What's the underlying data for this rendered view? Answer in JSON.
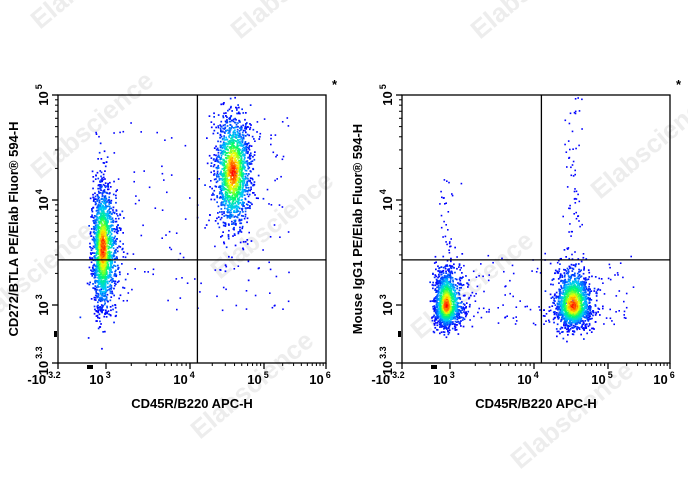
{
  "watermark": "Elabscience",
  "chart_data": [
    {
      "type": "scatter",
      "subtype": "flow-cytometry pseudocolor density plot",
      "xlabel": "CD45R/B220 APC-H",
      "ylabel": "CD272/BTLA PE/Elab Fluor® 594-H",
      "corner_mark": "*",
      "x_scale": "biexponential",
      "y_scale": "biexponential",
      "x_ticks": [
        {
          "base": "-10",
          "exp": "3.2"
        },
        {
          "base": "10",
          "exp": "3"
        },
        {
          "base": "10",
          "exp": "4"
        },
        {
          "base": "10",
          "exp": "5"
        },
        {
          "base": "10",
          "exp": "6"
        }
      ],
      "y_ticks": [
        {
          "base": "-10",
          "exp": "3.3"
        },
        {
          "base": "10",
          "exp": "3"
        },
        {
          "base": "10",
          "exp": "4"
        },
        {
          "base": "10",
          "exp": "5"
        }
      ],
      "quadrant_gate_log10": {
        "x": 4.1,
        "y": 3.43
      },
      "populations_log10": [
        {
          "x": 2.93,
          "y": 3.55,
          "sx": 0.1,
          "sy": 0.3,
          "n": 1700
        },
        {
          "x": 4.57,
          "y": 4.28,
          "sx": 0.12,
          "sy": 0.27,
          "n": 1500
        }
      ],
      "background_events": 180,
      "color_scale": [
        "#0000ff",
        "#00c8ff",
        "#00ff60",
        "#ffff00",
        "#ff0000"
      ]
    },
    {
      "type": "scatter",
      "subtype": "flow-cytometry pseudocolor density plot",
      "xlabel": "CD45R/B220 APC-H",
      "ylabel": "Mouse IgG1 PE/Elab Fluor® 594-H",
      "corner_mark": "*",
      "x_scale": "biexponential",
      "y_scale": "biexponential",
      "x_ticks": [
        {
          "base": "-10",
          "exp": "3.2"
        },
        {
          "base": "10",
          "exp": "3"
        },
        {
          "base": "10",
          "exp": "4"
        },
        {
          "base": "10",
          "exp": "5"
        },
        {
          "base": "10",
          "exp": "6"
        }
      ],
      "y_ticks": [
        {
          "base": "-10",
          "exp": "3.3"
        },
        {
          "base": "10",
          "exp": "3"
        },
        {
          "base": "10",
          "exp": "4"
        },
        {
          "base": "10",
          "exp": "5"
        }
      ],
      "quadrant_gate_log10": {
        "x": 4.1,
        "y": 3.43
      },
      "populations_log10": [
        {
          "x": 2.92,
          "y": 3.0,
          "sx": 0.11,
          "sy": 0.17,
          "n": 1300
        },
        {
          "x": 4.52,
          "y": 3.0,
          "sx": 0.12,
          "sy": 0.17,
          "n": 1500
        }
      ],
      "background_events": 160,
      "color_scale": [
        "#0000ff",
        "#00c8ff",
        "#00ff60",
        "#ffff00",
        "#ff0000"
      ]
    }
  ]
}
